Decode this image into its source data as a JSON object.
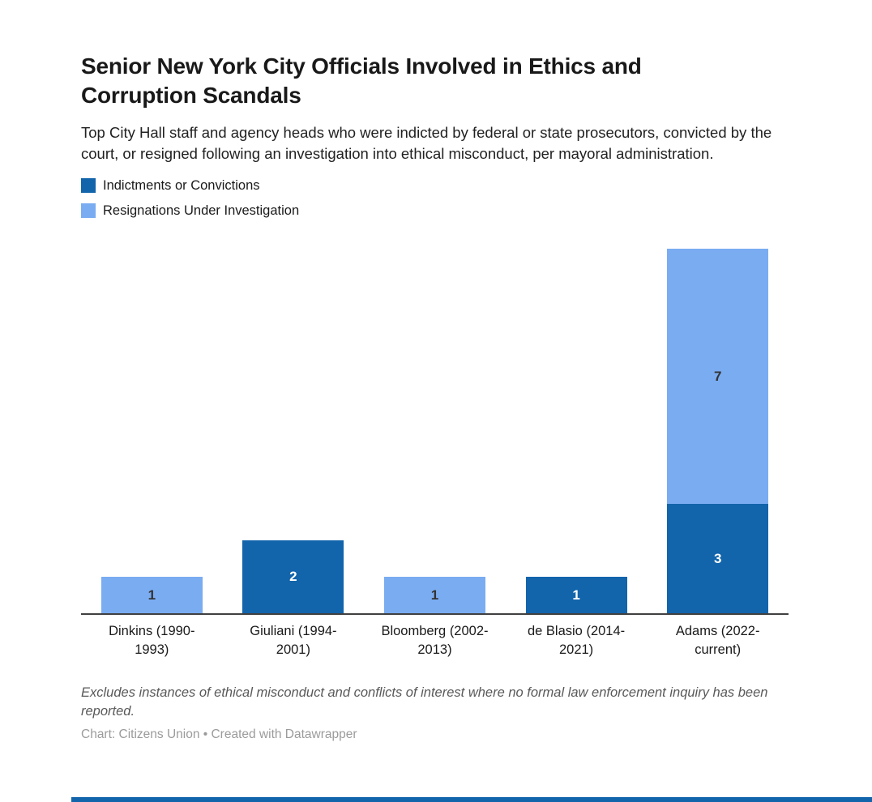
{
  "page": {
    "background": "#ffffff",
    "bottom_strip_color": "#1264ab"
  },
  "header": {
    "title": "Senior New York City Officials Involved in Ethics and Corruption Scandals",
    "description": "Top City Hall staff and agency heads who were indicted by federal or state prosecutors, convicted by the court, or resigned following an investigation into ethical misconduct, per mayoral administration."
  },
  "legend": {
    "items": [
      {
        "label": "Indictments or Convictions",
        "color": "#1264ab"
      },
      {
        "label": "Resignations Under Investigation",
        "color": "#7aacf2"
      }
    ]
  },
  "chart_data": {
    "type": "bar",
    "stacked": true,
    "title": "Senior New York City Officials Involved in Ethics and Corruption Scandals",
    "xlabel": "",
    "ylabel": "",
    "ylim": [
      0,
      10
    ],
    "grid": false,
    "legend_position": "top-left",
    "value_labels": true,
    "axis_line_color": "#404040",
    "categories": [
      "Dinkins (1990-1993)",
      "Giuliani (1994-2001)",
      "Bloomberg (2002-2013)",
      "de Blasio (2014-2021)",
      "Adams (2022-current)"
    ],
    "category_label_lines": [
      [
        "Dinkins (1990-",
        "1993)"
      ],
      [
        "Giuliani (1994-",
        "2001)"
      ],
      [
        "Bloomberg (2002-",
        "2013)"
      ],
      [
        "de Blasio (2014-",
        "2021)"
      ],
      [
        "Adams (2022-",
        "current)"
      ]
    ],
    "series": [
      {
        "name": "Indictments or Convictions",
        "color": "#1264ab",
        "label_color": "#ffffff",
        "values": [
          0,
          2,
          0,
          1,
          3
        ]
      },
      {
        "name": "Resignations Under Investigation",
        "color": "#7aacf2",
        "label_color": "#333333",
        "values": [
          1,
          0,
          1,
          0,
          7
        ]
      }
    ]
  },
  "footer": {
    "note": "Excludes instances of ethical misconduct and conflicts of interest where no formal law enforcement inquiry has been reported.",
    "attribution": "Chart: Citizens Union • Created with Datawrapper"
  }
}
